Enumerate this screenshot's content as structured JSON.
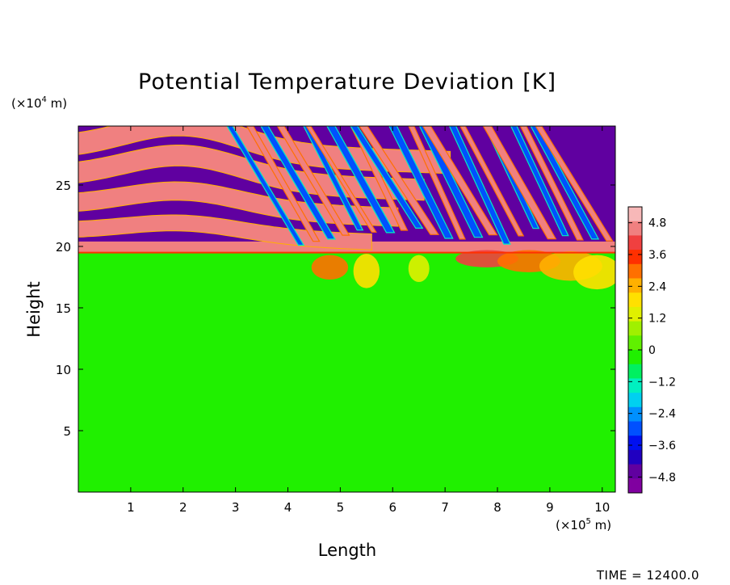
{
  "chart_data": {
    "type": "heatmap",
    "title": "Potential Temperature Deviation [K]",
    "xlabel": "Length",
    "ylabel": "Height",
    "x_unit": {
      "prefix": "(×10",
      "exp": "5",
      "suffix": " m)"
    },
    "y_unit": {
      "prefix": "(×10",
      "exp": "4",
      "suffix": " m)"
    },
    "xlim": [
      0,
      10.25
    ],
    "ylim": [
      0,
      29.8
    ],
    "x_ticks": [
      1,
      2,
      3,
      4,
      5,
      6,
      7,
      8,
      9,
      10
    ],
    "y_ticks": [
      5,
      10,
      15,
      20,
      25
    ],
    "colorbar": {
      "min": -5.4,
      "max": 5.4,
      "ticks": [
        {
          "value": 4.8,
          "label": "4.8"
        },
        {
          "value": 3.6,
          "label": "3.6"
        },
        {
          "value": 2.4,
          "label": "2.4"
        },
        {
          "value": 1.2,
          "label": "1.2"
        },
        {
          "value": 0,
          "label": "0"
        },
        {
          "value": -1.2,
          "label": "−1.2"
        },
        {
          "value": -2.4,
          "label": "−2.4"
        },
        {
          "value": -3.6,
          "label": "−3.6"
        },
        {
          "value": -4.8,
          "label": "−4.8"
        }
      ],
      "colors_top_to_bottom": [
        "#f7b8b8",
        "#f08080",
        "#f04040",
        "#ff3000",
        "#ff7000",
        "#ffb000",
        "#ffe000",
        "#e0f000",
        "#a0f000",
        "#60f000",
        "#20f000",
        "#00f060",
        "#00f0c0",
        "#00d0f0",
        "#0090ff",
        "#0050ff",
        "#0010f0",
        "#2000c0",
        "#6000a0",
        "#8000a0"
      ]
    },
    "field_description": {
      "background_value": 0,
      "tropopause_height": 19.5,
      "layers_above_tropopause": "alternating bands of +4.8 and -4.8 K arcing over x≈2, becoming tilted wave structures toward larger x",
      "disturbances_below_tropopause": "warm plumes of +2 to +5 K near 19 to 20 at x≈4.5–6.8 and x≈7.3–10.2"
    }
  },
  "annotation": {
    "time_label": "TIME = 12400.0"
  },
  "colors": {
    "positive_max": "#f7b8b8",
    "negative_max": "#8000a0",
    "neutral": "#40f020"
  }
}
